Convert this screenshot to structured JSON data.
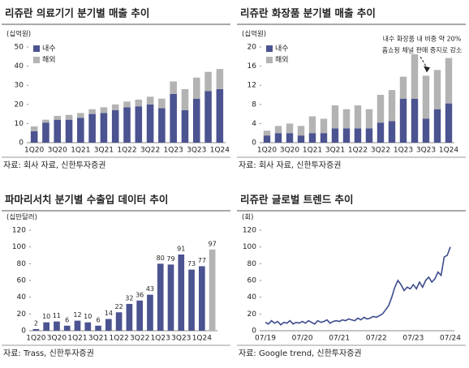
{
  "chart_data": [
    {
      "type": "bar",
      "stacked": true,
      "title": "리쥬란 의료기기 분기별 매출 추이",
      "ylabel": "(십억원)",
      "source": "자료: 회사 자료, 신한투자증권",
      "categories": [
        "1Q20",
        null,
        "3Q20",
        null,
        "1Q21",
        null,
        "3Q21",
        null,
        "1Q22",
        null,
        "3Q22",
        null,
        "1Q23",
        null,
        "3Q23",
        null,
        "1Q24"
      ],
      "series": [
        {
          "name": "내수",
          "color": "#4b5390",
          "values": [
            6,
            10.5,
            12,
            12,
            13,
            15,
            15.5,
            17,
            18.5,
            19,
            20,
            18,
            25.5,
            17,
            23,
            27,
            28
          ]
        },
        {
          "name": "해외",
          "color": "#b3b3b3",
          "values": [
            2.5,
            1.5,
            2,
            2.5,
            2.5,
            2.5,
            3,
            3,
            3,
            3.5,
            4,
            5,
            6.5,
            11,
            11,
            10,
            10.5
          ]
        }
      ],
      "ylim": [
        0,
        50
      ],
      "yticks": [
        0,
        10,
        20,
        30,
        40,
        50
      ],
      "legend": "upper left"
    },
    {
      "type": "bar",
      "stacked": true,
      "title": "리쥬란 화장품 분기별 매출 추이",
      "ylabel": "(십억원)",
      "source": "자료: 회사 자료, 신한투자증권",
      "categories": [
        "1Q20",
        null,
        "3Q20",
        null,
        "1Q21",
        null,
        "3Q21",
        null,
        "1Q22",
        null,
        "3Q22",
        null,
        "1Q23",
        null,
        "3Q23",
        null,
        "1Q24"
      ],
      "series": [
        {
          "name": "내수",
          "color": "#4b5390",
          "values": [
            1.5,
            2,
            2,
            1.5,
            2,
            2,
            3,
            3,
            3,
            3,
            4.2,
            4.5,
            9.2,
            9.2,
            5,
            7,
            8.2
          ]
        },
        {
          "name": "해외",
          "color": "#b3b3b3",
          "values": [
            1,
            1.5,
            2,
            2,
            3.5,
            3,
            4.8,
            4,
            4.8,
            4,
            5.8,
            6.5,
            4.6,
            9.3,
            9,
            8.2,
            9.5
          ]
        }
      ],
      "ylim": [
        0,
        20
      ],
      "yticks": [
        0,
        4,
        8,
        12,
        16,
        20
      ],
      "legend": "upper left",
      "annotations": [
        "내수 화장품 내 비중 약 20%",
        "홈쇼핑 채널 판매 중지로 감소"
      ]
    },
    {
      "type": "bar",
      "title": "파마리서치 분기별 수출입 데이터 추이",
      "ylabel": "(십만달러)",
      "source": "자료: Trass, 신한투자증권",
      "categories": [
        "1Q20",
        null,
        "3Q20",
        null,
        "1Q21",
        null,
        "3Q21",
        null,
        "1Q22",
        null,
        "3Q22",
        null,
        "1Q23",
        null,
        "3Q23",
        null,
        "1Q24",
        null
      ],
      "values": [
        2,
        10,
        11,
        6,
        12,
        10,
        6,
        14,
        22,
        32,
        36,
        43,
        80,
        79,
        91,
        73,
        77,
        97
      ],
      "colors": [
        "#4b5390",
        "#4b5390",
        "#4b5390",
        "#4b5390",
        "#4b5390",
        "#4b5390",
        "#4b5390",
        "#4b5390",
        "#4b5390",
        "#4b5390",
        "#4b5390",
        "#4b5390",
        "#4b5390",
        "#4b5390",
        "#4b5390",
        "#4b5390",
        "#4b5390",
        "#b3b3b3"
      ],
      "ylim": [
        0,
        120
      ],
      "yticks": [
        0,
        20,
        40,
        60,
        80,
        100,
        120
      ]
    },
    {
      "type": "line",
      "title": "리쥬란 글로벌 트렌드 추이",
      "ylabel": "(회)",
      "source": "자료: Google trend, 신한투자증권",
      "categories": [
        "07/19",
        null,
        null,
        null,
        null,
        null,
        null,
        null,
        null,
        null,
        null,
        null,
        "07/20",
        null,
        null,
        null,
        null,
        null,
        null,
        null,
        null,
        null,
        null,
        null,
        "07/21",
        null,
        null,
        null,
        null,
        null,
        null,
        null,
        null,
        null,
        null,
        null,
        "07/22",
        null,
        null,
        null,
        null,
        null,
        null,
        null,
        null,
        null,
        null,
        null,
        "07/23",
        null,
        null,
        null,
        null,
        null,
        null,
        null,
        null,
        null,
        null,
        null,
        "07/24"
      ],
      "values": [
        10,
        8,
        12,
        9,
        11,
        7,
        10,
        9,
        12,
        8,
        10,
        9,
        11,
        9,
        12,
        10,
        8,
        12,
        10,
        11,
        13,
        9,
        11,
        12,
        11,
        13,
        12,
        14,
        13,
        12,
        15,
        13,
        16,
        14,
        15,
        17,
        16,
        18,
        20,
        25,
        30,
        40,
        52,
        60,
        55,
        48,
        52,
        50,
        55,
        50,
        58,
        52,
        60,
        64,
        58,
        62,
        70,
        66,
        88,
        90,
        100
      ],
      "color": "#3c4a8c",
      "ylim": [
        0,
        120
      ],
      "yticks": [
        0,
        20,
        40,
        60,
        80,
        100,
        120
      ]
    }
  ]
}
